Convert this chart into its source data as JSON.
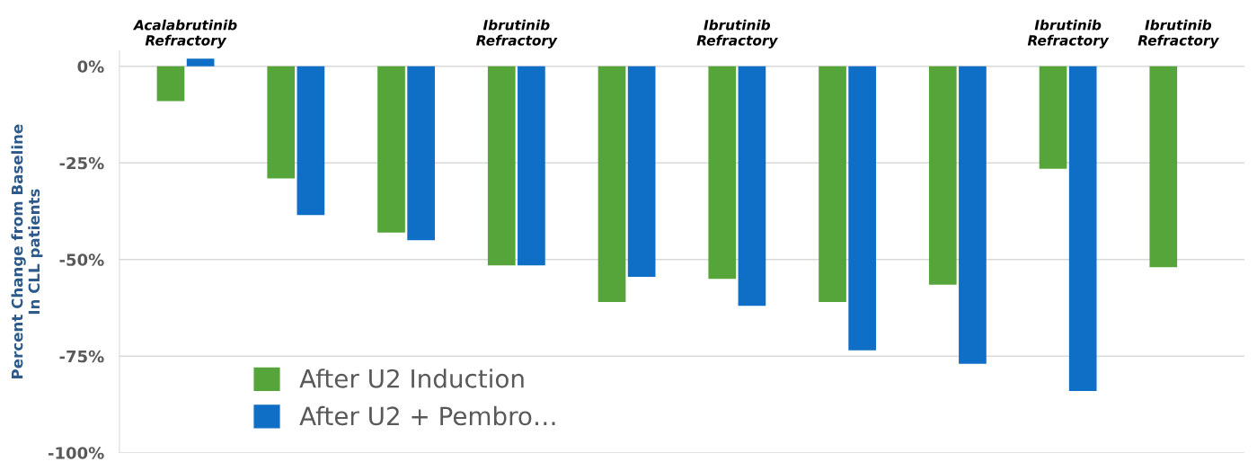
{
  "chart_data": {
    "type": "bar",
    "ylabel": "Percent Change from Baseline\nIn CLL patients",
    "categories": [
      "Acalabrutinib\nRefractory",
      null,
      null,
      "Ibrutinib\nRefractory",
      null,
      "Ibrutinib\nRefractory",
      null,
      null,
      "Ibrutinib\nRefractory",
      "Ibrutinib\nRefractory"
    ],
    "series": [
      {
        "name": "After U2 Induction",
        "color": "#56a53b",
        "values": [
          -9,
          -29,
          -43,
          -51.5,
          -61,
          -55,
          -61,
          -56.5,
          -26.5,
          -52
        ]
      },
      {
        "name": "After U2 + Pembro…",
        "color": "#0f6fc6",
        "values": [
          2,
          -38.5,
          -45,
          -51.5,
          -54.5,
          -62,
          -73.5,
          -77,
          -84,
          null
        ]
      }
    ],
    "ylim": [
      -100,
      4
    ],
    "yticks": [
      {
        "value": -100,
        "label": "-100%"
      },
      {
        "value": -75,
        "label": "-75%"
      },
      {
        "value": -50,
        "label": "-50%"
      },
      {
        "value": -25,
        "label": "-25%"
      },
      {
        "value": 0,
        "label": "0%"
      }
    ],
    "grid": "y",
    "legend": "bottom left"
  }
}
